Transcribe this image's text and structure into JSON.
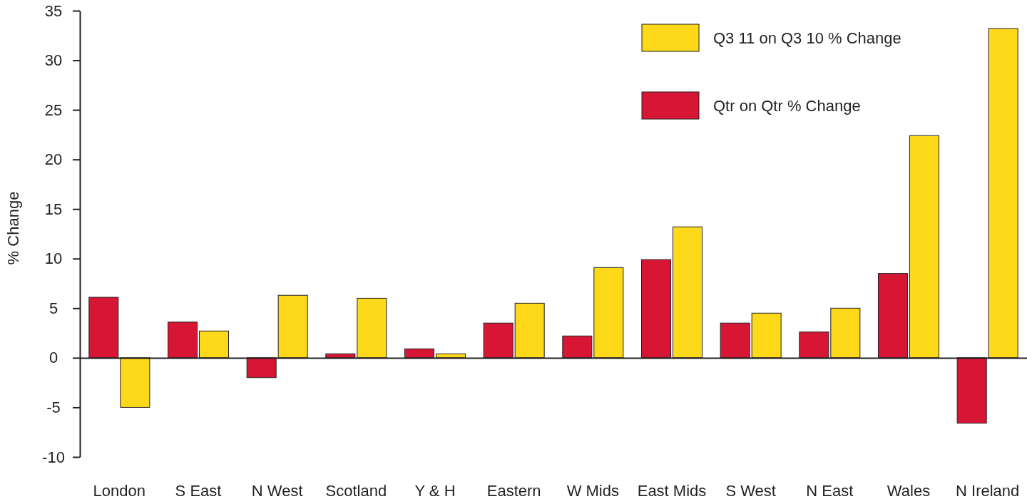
{
  "chart_data": {
    "type": "bar",
    "ylabel": "% Change",
    "categories": [
      "London",
      "S East",
      "N West",
      "Scotland",
      "Y & H",
      "Eastern",
      "W Mids",
      "East Mids",
      "S West",
      "N East",
      "Wales",
      "N Ireland"
    ],
    "series": [
      {
        "name": "Qtr on Qtr % Change",
        "color": "#d71635",
        "values": [
          6.1,
          3.6,
          -2.0,
          0.4,
          0.9,
          3.5,
          2.2,
          9.9,
          3.5,
          2.6,
          8.5,
          -6.6
        ]
      },
      {
        "name": "Q3 11 on Q3 10 % Change",
        "color": "#fdd919",
        "values": [
          -5.0,
          2.7,
          6.3,
          6.0,
          0.4,
          5.5,
          9.1,
          13.2,
          4.5,
          5.0,
          22.4,
          33.2
        ]
      }
    ],
    "ylim": [
      -10,
      35
    ],
    "yticks": [
      -10,
      -5,
      0,
      5,
      10,
      15,
      20,
      25,
      30,
      35
    ],
    "legend": "top right"
  }
}
